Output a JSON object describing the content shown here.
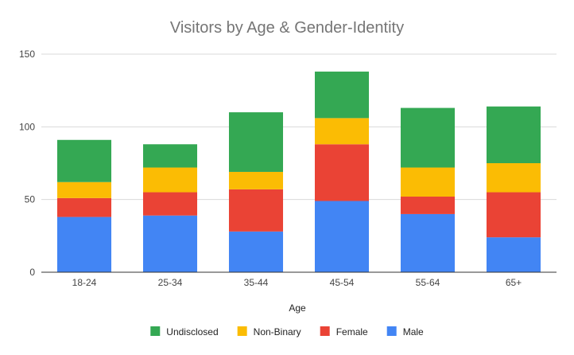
{
  "chart_data": {
    "type": "bar",
    "stacked": true,
    "title": "Visitors by Age & Gender-Identity",
    "xlabel": "Age",
    "ylabel": "",
    "ylim": [
      0,
      150
    ],
    "yticks": [
      0,
      50,
      100,
      150
    ],
    "grid": true,
    "legend_position": "bottom",
    "categories": [
      "18-24",
      "25-34",
      "35-44",
      "45-54",
      "55-64",
      "65+"
    ],
    "series": [
      {
        "name": "Male",
        "color": "#4285f4",
        "values": [
          38,
          39,
          28,
          49,
          40,
          24
        ]
      },
      {
        "name": "Female",
        "color": "#ea4335",
        "values": [
          13,
          16,
          29,
          39,
          12,
          31
        ]
      },
      {
        "name": "Non-Binary",
        "color": "#fbbc04",
        "values": [
          11,
          17,
          12,
          18,
          20,
          20
        ]
      },
      {
        "name": "Undisclosed",
        "color": "#34a853",
        "values": [
          29,
          16,
          41,
          32,
          41,
          39
        ]
      }
    ],
    "legend_order": [
      "Undisclosed",
      "Non-Binary",
      "Female",
      "Male"
    ]
  }
}
